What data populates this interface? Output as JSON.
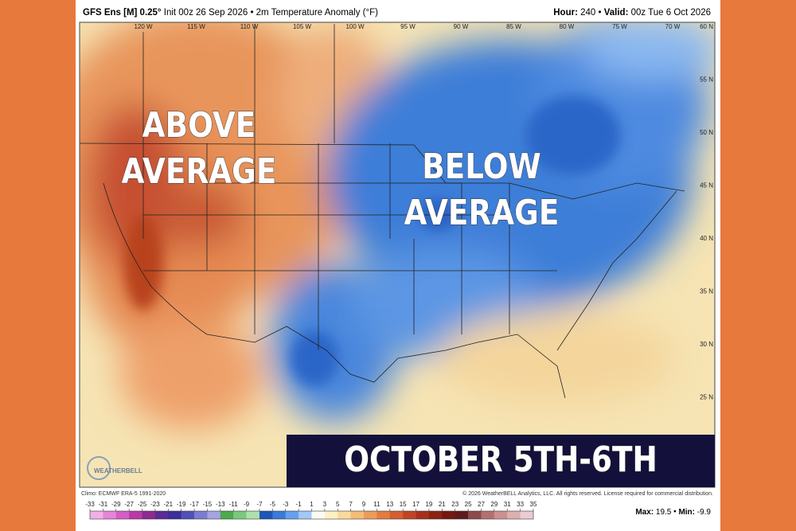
{
  "header": {
    "model": "GFS Ens [M] 0.25°",
    "info": "Init 00z 26 Sep 2026 • 2m Temperature Anomaly (°F)",
    "hour_label": "Hour:",
    "hour": "240",
    "valid_label": "Valid:",
    "valid": "00z Tue 6 Oct 2026"
  },
  "map": {
    "longitudes": [
      "120 W",
      "115 W",
      "110 W",
      "105 W",
      "100 W",
      "95 W",
      "90 W",
      "85 W",
      "80 W",
      "75 W",
      "70 W"
    ],
    "latitudes": [
      "60 N",
      "55 N",
      "50 N",
      "45 N",
      "40 N",
      "35 N",
      "30 N",
      "25 N"
    ],
    "overlay_above": [
      "ABOVE",
      "AVERAGE"
    ],
    "overlay_below": [
      "BELOW",
      "AVERAGE"
    ],
    "banner": "OCTOBER 5TH-6TH",
    "logo": "WEATHERBELL"
  },
  "footer": {
    "climo": "Climo: ECMWF ERA-5 1991-2020",
    "copyright": "© 2026 WeatherBELL Analytics, LLC. All rights reserved. License required for commercial distribution.",
    "max_label": "Max:",
    "max": "19.5",
    "min_label": "Min:",
    "min": "-9.9"
  },
  "colorbar": {
    "ticks": [
      -33,
      -31,
      -29,
      -27,
      -25,
      -23,
      -21,
      -19,
      -17,
      -15,
      -13,
      -11,
      -9,
      -7,
      -5,
      -3,
      -1,
      1,
      3,
      5,
      7,
      9,
      11,
      13,
      15,
      17,
      19,
      21,
      23,
      25,
      27,
      29,
      31,
      33,
      35
    ],
    "colors": [
      "#f2b0e6",
      "#e684d8",
      "#d65cc6",
      "#b83aa8",
      "#8e2a90",
      "#5a2c94",
      "#3c2e9c",
      "#5050b8",
      "#7c7cd0",
      "#a4a4e2",
      "#4caa4c",
      "#7cc87c",
      "#aee0ae",
      "#1e56b8",
      "#3a7ad8",
      "#66a0ee",
      "#a2c8f8",
      "#fbfbf5",
      "#fff0c4",
      "#fbd99c",
      "#f4bc78",
      "#ec9c58",
      "#e27c40",
      "#d45e30",
      "#c24424",
      "#a8301a",
      "#8e2212",
      "#741a10",
      "#5e1c1c",
      "#8e4a4a",
      "#b47070",
      "#cc9090",
      "#dcb0b0",
      "#ecccd0"
    ]
  }
}
